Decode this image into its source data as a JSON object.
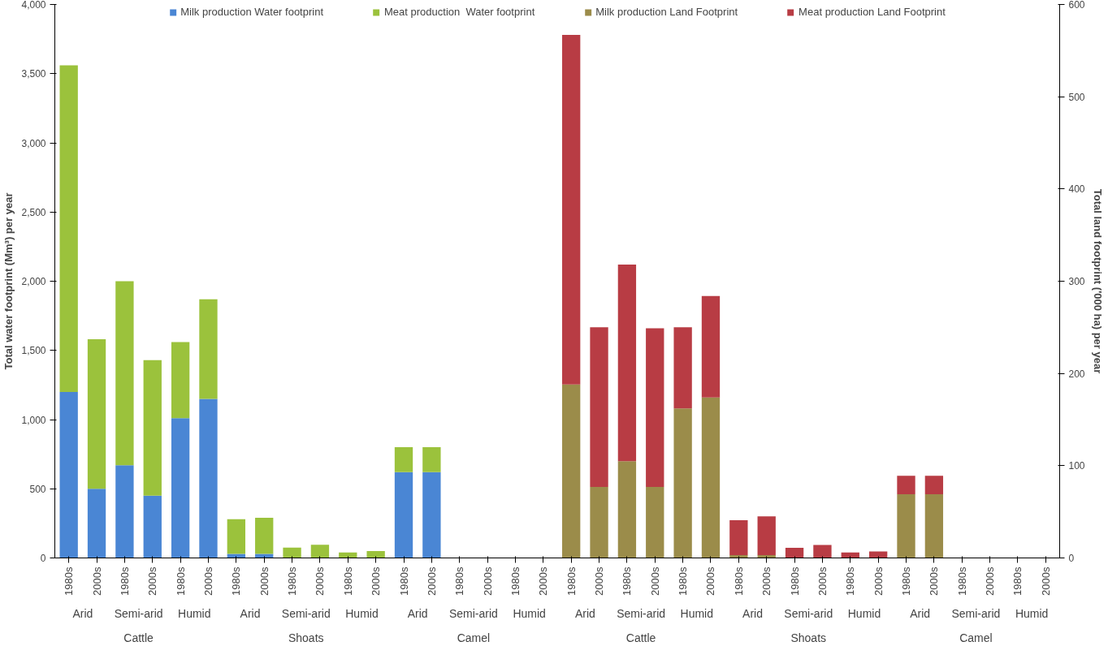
{
  "chart_data": {
    "type": "bar",
    "stacked": true,
    "xlabel": null,
    "ylabel": "Total water footprint (Mm³) per year",
    "y2label": "Total land footprint ('000 ha) per year",
    "categories": [
      "1980s",
      "2000s",
      "1980s",
      "2000s",
      "1980s",
      "2000s",
      "1980s",
      "2000s",
      "1980s",
      "2000s",
      "1980s",
      "2000s",
      "1980s",
      "2000s",
      "1980s",
      "2000s",
      "1980s",
      "2000s",
      "1980s",
      "2000s",
      "1980s",
      "2000s",
      "1980s",
      "2000s",
      "1980s",
      "2000s",
      "1980s",
      "2000s",
      "1980s",
      "2000s",
      "1980s",
      "2000s",
      "1980s",
      "2000s",
      "1980s",
      "2000s"
    ],
    "series": [
      {
        "name": "Milk production Water footprint",
        "color": "#4a86d4",
        "values": [
          1200,
          500,
          670,
          450,
          1010,
          1150,
          30,
          30,
          null,
          null,
          null,
          null,
          620,
          620,
          0,
          0,
          0,
          0,
          null,
          null,
          null,
          null,
          null,
          null,
          null,
          null,
          null,
          null,
          null,
          null,
          null,
          null,
          null,
          null,
          null,
          null
        ]
      },
      {
        "name": "Meat production  Water footprint",
        "color": "#9bc23c",
        "values": [
          2360,
          1080,
          1330,
          980,
          550,
          720,
          250,
          260,
          75,
          95,
          40,
          50,
          180,
          180,
          0,
          0,
          0,
          0,
          null,
          null,
          null,
          null,
          null,
          null,
          null,
          null,
          null,
          null,
          null,
          null,
          null,
          null,
          null,
          null,
          null,
          null
        ]
      },
      {
        "name": "Milk production Land Footprint",
        "color": "#9b8c4a",
        "axis": "y2",
        "values": [
          null,
          null,
          null,
          null,
          null,
          null,
          null,
          null,
          null,
          null,
          null,
          null,
          null,
          null,
          null,
          null,
          null,
          null,
          188,
          77,
          105,
          77,
          162,
          174,
          3,
          3,
          null,
          null,
          null,
          null,
          69,
          69,
          0,
          0,
          0,
          0
        ]
      },
      {
        "name": "Meat production Land Footprint",
        "color": "#b83c44",
        "axis": "y2",
        "values": [
          null,
          null,
          null,
          null,
          null,
          null,
          null,
          null,
          null,
          null,
          null,
          null,
          null,
          null,
          null,
          null,
          null,
          null,
          379,
          173,
          213,
          172,
          88,
          110,
          38,
          42,
          11,
          14,
          6,
          7,
          20,
          20,
          0,
          0,
          0,
          0
        ]
      }
    ],
    "ylim": [
      0,
      4000
    ],
    "yticks": [
      0,
      {
        "value": 500,
        "label": "500"
      },
      {
        "value": 1000,
        "label": "1,000"
      },
      {
        "value": 1500,
        "label": "1,500"
      },
      {
        "value": 2000,
        "label": "2,000"
      },
      {
        "value": 2500,
        "label": "2,500"
      },
      {
        "value": 3000,
        "label": "3,000"
      },
      {
        "value": 3500,
        "label": "3,500"
      },
      {
        "value": 4000,
        "label": "4,000"
      }
    ],
    "y2lim": [
      0,
      600
    ],
    "y2ticks": [
      0,
      100,
      200,
      300,
      400,
      500,
      600
    ],
    "annotations": [
      "Arid",
      "Semi-arid",
      "Humid",
      "Arid",
      "Semi-arid",
      "Humid",
      "Arid",
      "Semi-arid",
      "Humid",
      "Arid",
      "Semi-arid",
      "Humid",
      "Arid",
      "Semi-arid",
      "Humid",
      "Arid",
      "Semi-arid",
      "Humid",
      "Cattle",
      "Shoats",
      "Camel",
      "Cattle",
      "Shoats",
      "Camel"
    ],
    "legend": "top",
    "grid": false
  }
}
